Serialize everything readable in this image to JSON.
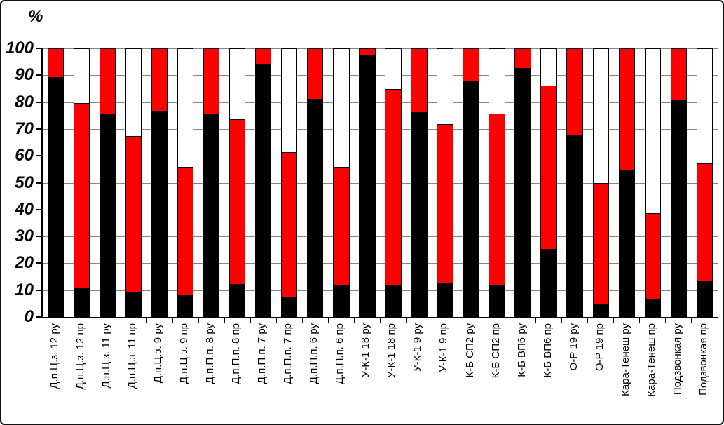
{
  "chart_data": {
    "type": "bar",
    "stacked": true,
    "title": "",
    "ylabel": "%",
    "xlabel": "",
    "ylim": [
      0,
      100
    ],
    "grid": true,
    "legend": "none",
    "y_ticks": [
      0,
      10,
      20,
      30,
      40,
      50,
      60,
      70,
      80,
      90,
      100
    ],
    "categories": [
      "Д.п.Ц.з. 12 ру",
      "Д.п.Ц.з. 12 пр",
      "Д.п.Ц.з. 11 ру",
      "Д.п.Ц.з. 11 пр",
      "Д.п.Ц.з. 9 ру",
      "Д.п.Ц.з. 9 пр",
      "Д.п.П.п. 8 ру",
      "Д.п.П.п. 8 пр",
      "Д.п.П.п. 7 ру",
      "Д.п.П.п. 7 пр",
      "Д.п.П.п. 6 ру",
      "Д.п.П.п. 6 пр",
      "У-К-1 18 ру",
      "У-К-1 18 пр",
      "У-К-1 9 ру",
      "У-К-1 9 пр",
      "К-Б СП2 ру",
      "К-Б СП2 пр",
      "К-Б ВП6 ру",
      "К-Б ВП6 пр",
      "О-Р 19 ру",
      "О-Р 19 пр",
      "Кара-Тенеш ру",
      "Кара-Тенеш пр",
      "Подзвонкая ру",
      "Подзвонкая пр"
    ],
    "series": [
      {
        "name": "black-segment",
        "color": "#000000",
        "values": [
          89,
          10.5,
          75.5,
          9,
          76.5,
          8,
          75.5,
          12,
          94,
          7,
          81,
          11.5,
          97.5,
          11.5,
          76,
          12.5,
          87.5,
          11.5,
          92.5,
          25,
          67.5,
          4.5,
          54.5,
          6.5,
          80.5,
          13
        ]
      },
      {
        "name": "red-segment",
        "color": "#FF0000",
        "values": [
          11,
          69,
          24.5,
          58,
          23.5,
          47.5,
          24.5,
          61.5,
          6,
          54,
          19,
          44,
          2.5,
          73,
          24,
          59,
          12.5,
          64,
          7.5,
          61,
          32.5,
          45,
          45.5,
          32,
          19.5,
          44
        ]
      },
      {
        "name": "white-segment",
        "color": "#FFFFFF",
        "values": [
          0,
          20.5,
          0,
          33,
          0,
          44.5,
          0,
          26.5,
          0,
          39,
          0,
          44.5,
          0,
          15.5,
          0,
          28.5,
          0,
          24.5,
          0,
          14,
          0,
          50.5,
          0,
          61.5,
          0,
          43
        ]
      }
    ]
  },
  "colors": {
    "grid": "#858585",
    "axis": "#000000",
    "background": "#FFFFFF"
  }
}
